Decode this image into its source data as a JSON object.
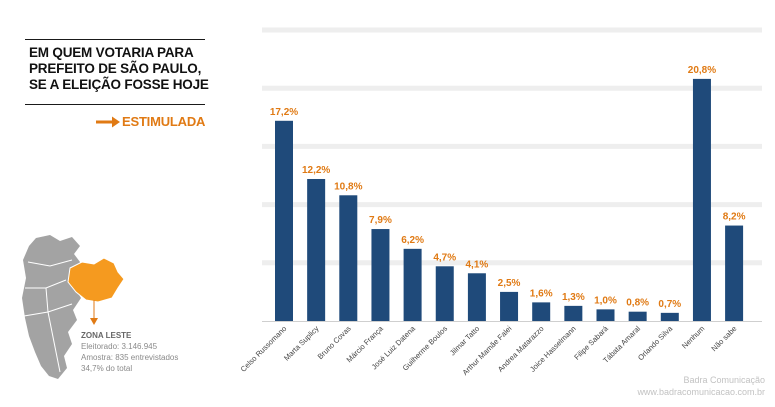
{
  "title_lines": [
    "EM QUEM VOTARIA PARA",
    "PREFEITO DE SÃO PAULO,",
    "SE A ELEIÇÃO FOSSE HOJE"
  ],
  "subtitle": "ESTIMULADA",
  "colors": {
    "bar": "#1f4a7a",
    "value_label": "#e07a14",
    "highlight_zone": "#f59a1f",
    "map_gray": "#a3a3a3",
    "gridline": "#eeeeee"
  },
  "chart_data": {
    "type": "bar",
    "categories": [
      "Celso Russomano",
      "Marta Suplicy",
      "Bruno Covas",
      "Márcio França",
      "José Luiz Datena",
      "Guilherme Boulos",
      "Jilmar Tatto",
      "Arthur Mamãe Falei",
      "Andrea Matarazzo",
      "Joice Hasselmann",
      "Filipe Sabará",
      "Tábata Amaral",
      "Orlando Silva",
      "Nenhum",
      "Não sabe"
    ],
    "values": [
      17.2,
      12.2,
      10.8,
      7.9,
      6.2,
      4.7,
      4.1,
      2.5,
      1.6,
      1.3,
      1.0,
      0.8,
      0.7,
      20.8,
      8.2
    ],
    "value_labels": [
      "17,2%",
      "12,2%",
      "10,8%",
      "7,9%",
      "6,2%",
      "4,7%",
      "4,1%",
      "2,5%",
      "1,6%",
      "1,3%",
      "1,0%",
      "0,8%",
      "0,7%",
      "20,8%",
      "8,2%"
    ],
    "ylim": [
      0,
      25
    ],
    "grid": true,
    "legend": "none"
  },
  "zone_info": {
    "title": "ZONA LESTE",
    "electorate": "Eleitorado: 3.146.945",
    "sample": "Amostra: 835 entrevistados",
    "share": "34,7% do total"
  },
  "footer": {
    "company": "Badra Comunicação",
    "website": "www.badracomunicacao.com.br"
  }
}
